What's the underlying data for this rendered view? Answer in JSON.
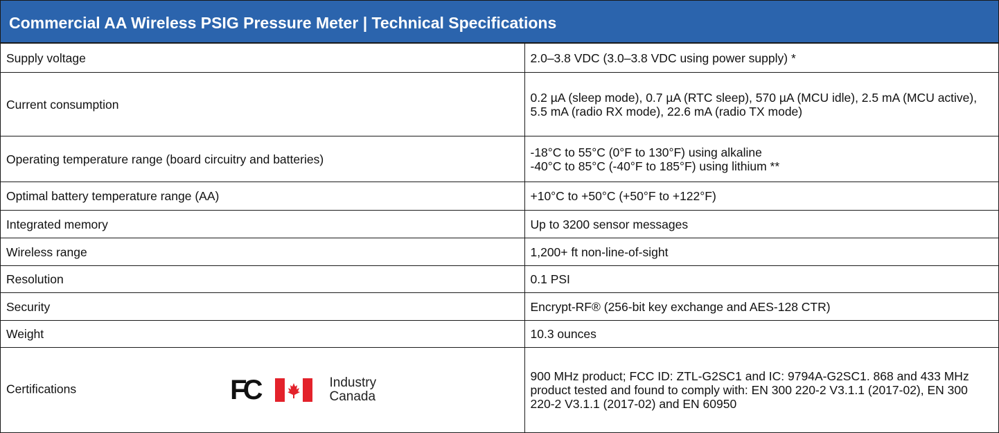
{
  "header": {
    "title": "Commercial AA Wireless PSIG Pressure Meter | Technical Specifications"
  },
  "table": {
    "rows": [
      [
        "Supply voltage",
        "2.0–3.8 VDC (3.0–3.8 VDC using power supply) *"
      ],
      [
        "Current consumption",
        "0.2 µA (sleep mode), 0.7 µA (RTC sleep), 570 µA (MCU idle), 2.5 mA (MCU active), 5.5 mA (radio RX mode), 22.6 mA (radio TX mode)"
      ],
      [
        "Operating temperature range (board circuitry and batteries)",
        [
          "-18°C to 55°C (0°F to 130°F) using alkaline",
          "-40°C to 85°C (-40°F to 185°F) using lithium **"
        ]
      ],
      [
        "Optimal battery temperature range (AA)",
        "+10°C to +50°C  (+50°F  to +122°F)"
      ],
      [
        "Integrated memory",
        "Up to 3200 sensor messages"
      ],
      [
        "Wireless range",
        "1,200+ ft non-line-of-sight"
      ],
      [
        "Resolution",
        "0.1 PSI"
      ],
      [
        "Security",
        "Encrypt-RF® (256-bit key exchange and AES-128 CTR)"
      ],
      [
        "Weight",
        "10.3 ounces"
      ],
      [
        "Certifications",
        "900 MHz product; FCC ID: ZTL-G2SC1 and IC: 9794A-G2SC1. 868 and 433 MHz product tested and found to comply with: EN 300 220-2 V3.1.1 (2017-02), EN 300 220-2 V3.1.1 (2017-02) and EN 60950"
      ]
    ]
  },
  "logos": {
    "fc": "FC",
    "industry_canada": [
      "Industry",
      "Canada"
    ]
  }
}
